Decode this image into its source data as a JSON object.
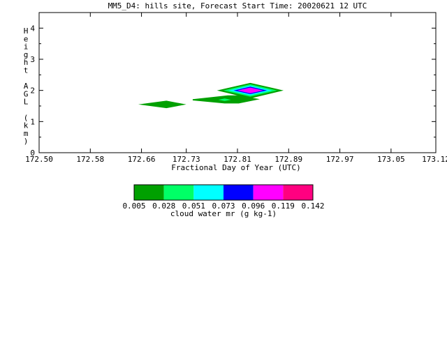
{
  "chart_data": {
    "type": "contour",
    "title": "MM5_D4: hills site,  Forecast Start Time: 20020621 12 UTC",
    "xlabel": "Fractional Day of Year (UTC)",
    "ylabel": "Height AGL (km)",
    "xlim": [
      172.5,
      173.12
    ],
    "ylim": [
      0,
      4.5
    ],
    "x_ticks": [
      "172.50",
      "172.58",
      "172.66",
      "172.73",
      "172.81",
      "172.89",
      "172.97",
      "173.05",
      "173.12"
    ],
    "y_ticks": [
      "0",
      "1",
      "2",
      "3",
      "4"
    ],
    "colorbar": {
      "label": "cloud water mr (g kg-1)",
      "levels": [
        "0.005",
        "0.028",
        "0.051",
        "0.073",
        "0.096",
        "0.119",
        "0.142"
      ],
      "colors": [
        "#00a000",
        "#00ff66",
        "#00ffff",
        "#0000ff",
        "#ff00ff",
        "#ff0080"
      ]
    },
    "regions": [
      {
        "level": 0,
        "x": [
          172.655,
          172.699,
          172.73,
          172.699
        ],
        "y": [
          1.55,
          1.67,
          1.55,
          1.43
        ]
      },
      {
        "level": 0,
        "x": [
          172.74,
          172.795,
          172.812,
          172.845,
          172.812,
          172.79,
          172.74
        ],
        "y": [
          1.72,
          1.84,
          1.84,
          1.72,
          1.58,
          1.58,
          1.68
        ]
      },
      {
        "level": 0,
        "x": [
          172.778,
          172.83,
          172.882,
          172.83
        ],
        "y": [
          2.0,
          2.24,
          2.0,
          1.74
        ]
      },
      {
        "level": 1,
        "x": [
          172.788,
          172.83,
          172.872,
          172.83
        ],
        "y": [
          2.0,
          2.2,
          2.0,
          1.8
        ]
      },
      {
        "level": 1,
        "x": [
          172.78,
          172.79,
          172.8,
          172.79
        ],
        "y": [
          1.7,
          1.74,
          1.7,
          1.66
        ]
      },
      {
        "level": 2,
        "x": [
          172.796,
          172.83,
          172.864,
          172.83
        ],
        "y": [
          2.0,
          2.16,
          2.0,
          1.84
        ]
      },
      {
        "level": 3,
        "x": [
          172.804,
          172.83,
          172.856,
          172.83
        ],
        "y": [
          2.0,
          2.12,
          2.0,
          1.88
        ]
      },
      {
        "level": 4,
        "x": [
          172.81,
          172.83,
          172.85,
          172.83
        ],
        "y": [
          2.0,
          2.09,
          2.0,
          1.91
        ]
      }
    ]
  }
}
